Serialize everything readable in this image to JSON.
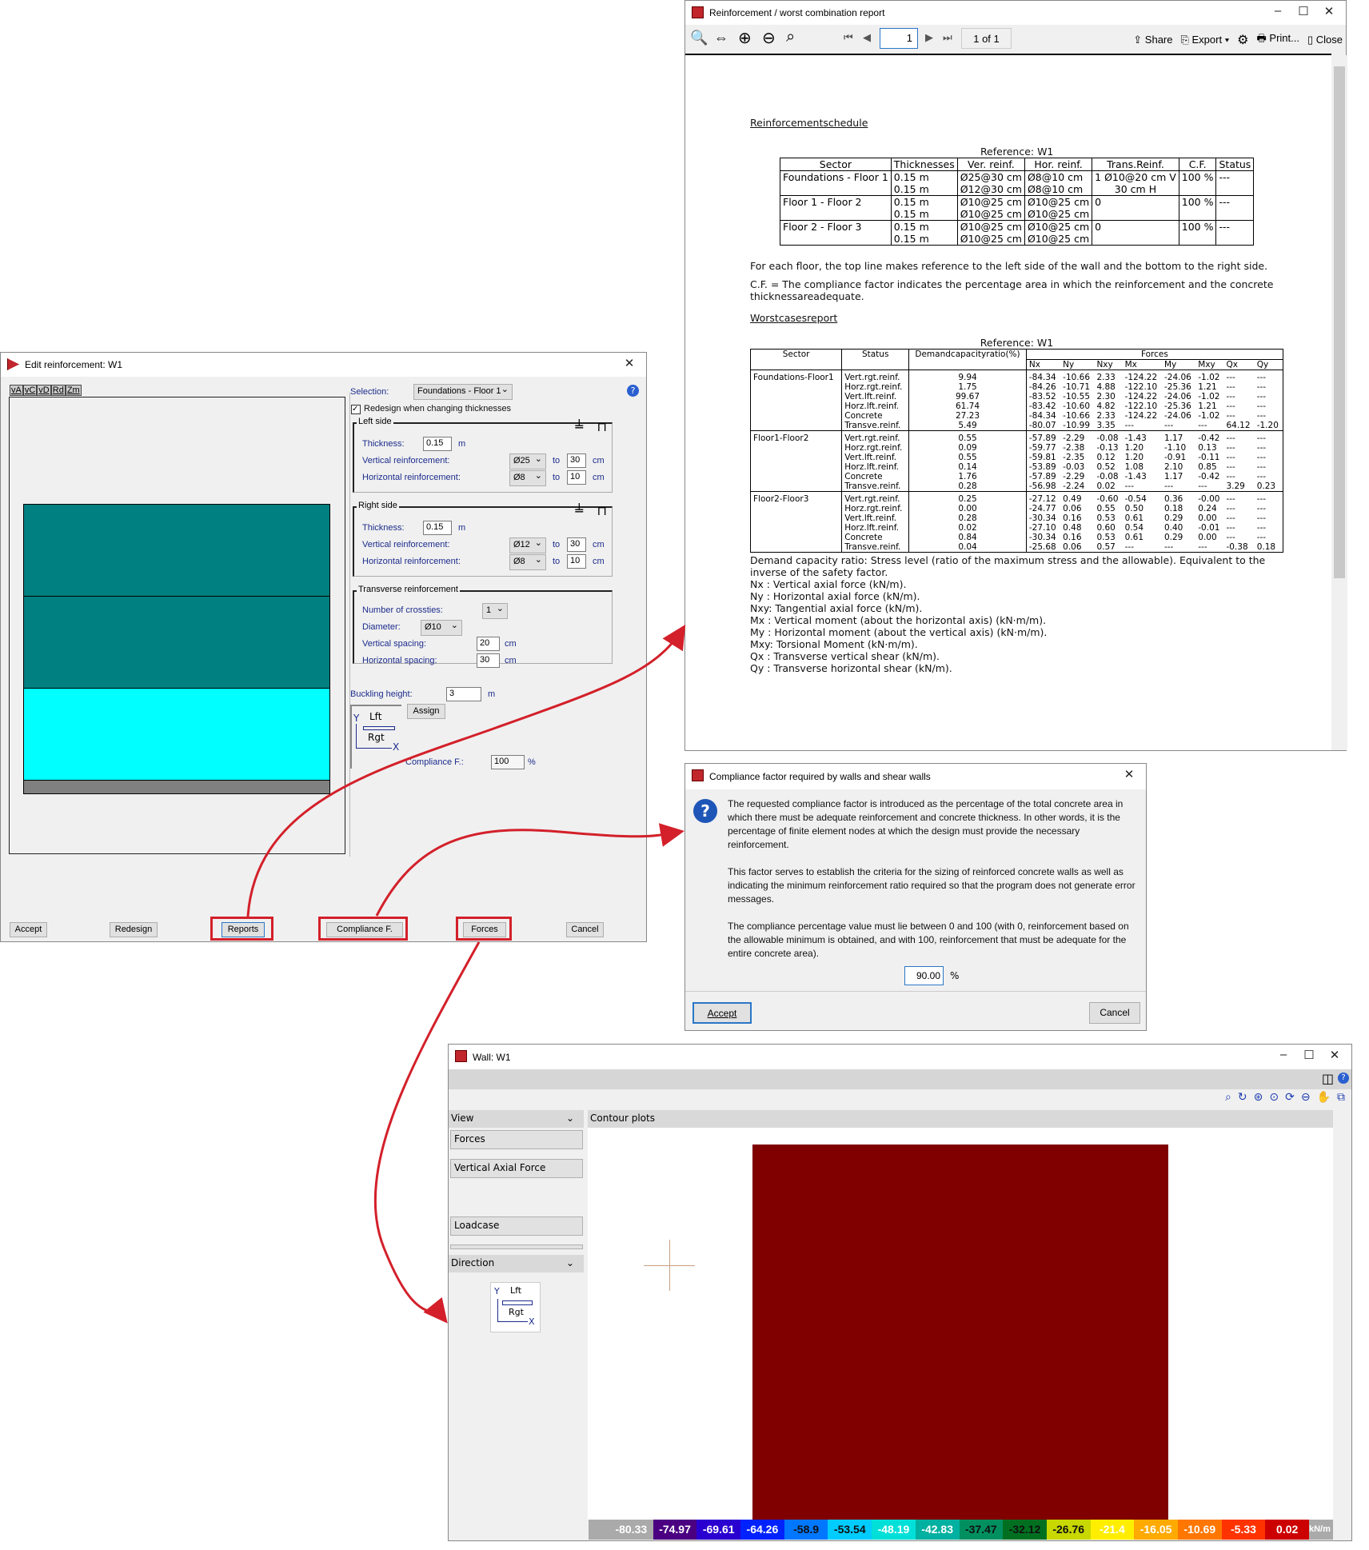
{
  "report": {
    "title": "Reinforcement / worst combination report",
    "page_input": "1",
    "page_of": "1 of 1",
    "toolbar": {
      "share": "Share",
      "export": "Export",
      "print": "Print...",
      "close": "Close"
    },
    "schedule_heading": "Reinforcementschedule",
    "reference1": "Reference: W1",
    "schedule_headers": [
      "Sector",
      "Thicknesses",
      "Ver. reinf.",
      "Hor. reinf.",
      "Trans.Reinf.",
      "C.F.",
      "Status"
    ],
    "schedule_rows": [
      {
        "sector": "Foundations - Floor 1",
        "thick": [
          "0.15 m",
          "0.15 m"
        ],
        "ver": [
          "Ø25@30 cm",
          "Ø12@30 cm"
        ],
        "hor": [
          "Ø8@10 cm",
          "Ø8@10 cm"
        ],
        "trans": [
          "1 Ø10@20 cm V",
          "30 cm H"
        ],
        "cf": "100 %",
        "status": "---"
      },
      {
        "sector": "Floor 1 - Floor 2",
        "thick": [
          "0.15 m",
          "0.15 m"
        ],
        "ver": [
          "Ø10@25 cm",
          "Ø10@25 cm"
        ],
        "hor": [
          "Ø10@25 cm",
          "Ø10@25 cm"
        ],
        "trans": [
          "0",
          ""
        ],
        "cf": "100 %",
        "status": "---"
      },
      {
        "sector": "Floor 2 - Floor 3",
        "thick": [
          "0.15 m",
          "0.15 m"
        ],
        "ver": [
          "Ø10@25 cm",
          "Ø10@25 cm"
        ],
        "hor": [
          "Ø10@25 cm",
          "Ø10@25 cm"
        ],
        "trans": [
          "0",
          ""
        ],
        "cf": "100 %",
        "status": "---"
      }
    ],
    "note1": "For each floor, the top line makes reference to the left side of the wall and the bottom to the right side.",
    "note2": "C.F. = The compliance factor indicates the percentage area in which the reinforcement and the concrete thicknessareadequate.",
    "worst_heading": "Worstcasesreport",
    "reference2": "Reference: W1",
    "worst_headers": {
      "sector": "Sector",
      "status": "Status",
      "ratio": "Demandcapacityratio(%)",
      "forces": "Forces",
      "cols": [
        "Nx",
        "Ny",
        "Nxy",
        "Mx",
        "My",
        "Mxy",
        "Qx",
        "Qy"
      ]
    },
    "worst_groups": [
      {
        "sector": "Foundations-Floor1",
        "rows": [
          [
            "Vert.rgt.reinf.",
            "9.94",
            "-84.34",
            "-10.66",
            "2.33",
            "-124.22",
            "-24.06",
            "-1.02",
            "---",
            "---"
          ],
          [
            "Horz.rgt.reinf.",
            "1.75",
            "-84.26",
            "-10.71",
            "4.88",
            "-122.10",
            "-25.36",
            "1.21",
            "---",
            "---"
          ],
          [
            "Vert.lft.reinf.",
            "99.67",
            "-83.52",
            "-10.55",
            "2.30",
            "-124.22",
            "-24.06",
            "-1.02",
            "---",
            "---"
          ],
          [
            "Horz.lft.reinf.",
            "61.74",
            "-83.42",
            "-10.60",
            "4.82",
            "-122.10",
            "-25.36",
            "1.21",
            "---",
            "---"
          ],
          [
            "Concrete",
            "27.23",
            "-84.34",
            "-10.66",
            "2.33",
            "-124.22",
            "-24.06",
            "-1.02",
            "---",
            "---"
          ],
          [
            "Transve.reinf.",
            "5.49",
            "-80.07",
            "-10.99",
            "3.35",
            "---",
            "---",
            "---",
            "64.12",
            "-1.20"
          ]
        ]
      },
      {
        "sector": "Floor1-Floor2",
        "rows": [
          [
            "Vert.rgt.reinf.",
            "0.55",
            "-57.89",
            "-2.29",
            "-0.08",
            "-1.43",
            "1.17",
            "-0.42",
            "---",
            "---"
          ],
          [
            "Horz.rgt.reinf.",
            "0.09",
            "-59.77",
            "-2.38",
            "-0.13",
            "1.20",
            "-1.10",
            "0.13",
            "---",
            "---"
          ],
          [
            "Vert.lft.reinf.",
            "0.55",
            "-59.81",
            "-2.35",
            "0.12",
            "1.20",
            "-0.91",
            "-0.11",
            "---",
            "---"
          ],
          [
            "Horz.lft.reinf.",
            "0.14",
            "-53.89",
            "-0.03",
            "0.52",
            "1.08",
            "2.10",
            "0.85",
            "---",
            "---"
          ],
          [
            "Concrete",
            "1.76",
            "-57.89",
            "-2.29",
            "-0.08",
            "-1.43",
            "1.17",
            "-0.42",
            "---",
            "---"
          ],
          [
            "Transve.reinf.",
            "0.28",
            "-56.98",
            "-2.24",
            "0.02",
            "---",
            "---",
            "---",
            "3.29",
            "0.23"
          ]
        ]
      },
      {
        "sector": "Floor2-Floor3",
        "rows": [
          [
            "Vert.rgt.reinf.",
            "0.25",
            "-27.12",
            "0.49",
            "-0.60",
            "-0.54",
            "0.36",
            "-0.00",
            "---",
            "---"
          ],
          [
            "Horz.rgt.reinf.",
            "0.00",
            "-24.77",
            "0.06",
            "0.55",
            "0.50",
            "0.18",
            "0.24",
            "---",
            "---"
          ],
          [
            "Vert.lft.reinf.",
            "0.28",
            "-30.34",
            "0.16",
            "0.53",
            "0.61",
            "0.29",
            "0.00",
            "---",
            "---"
          ],
          [
            "Horz.lft.reinf.",
            "0.02",
            "-27.10",
            "0.48",
            "0.60",
            "0.54",
            "0.40",
            "-0.01",
            "---",
            "---"
          ],
          [
            "Concrete",
            "0.84",
            "-30.34",
            "0.16",
            "0.53",
            "0.61",
            "0.29",
            "0.00",
            "---",
            "---"
          ],
          [
            "Transve.reinf.",
            "0.04",
            "-25.68",
            "0.06",
            "0.57",
            "---",
            "---",
            "---",
            "-0.38",
            "0.18"
          ]
        ]
      }
    ],
    "legend_lines": [
      "Demand capacity ratio: Stress level (ratio of the maximum stress and the allowable). Equivalent to the inverse of the safety factor.",
      "Nx : Vertical axial force (kN/m).",
      "Ny : Horizontal axial force (kN/m).",
      "Nxy: Tangential axial force (kN/m).",
      "Mx : Vertical moment (about the horizontal axis) (kN·m/m).",
      "My : Horizontal moment (about the vertical axis) (kN·m/m).",
      "Mxy: Torsional Moment (kN·m/m).",
      "Qx : Transverse vertical shear (kN/m).",
      "Qy : Transverse horizontal shear (kN/m)."
    ]
  },
  "edit": {
    "title": "Edit reinforcement: W1",
    "view_tabs": [
      "vA",
      "vC",
      "vD",
      "Rd",
      "Zm"
    ],
    "selection_label": "Selection:",
    "selection_value": "Foundations - Floor 1",
    "redesign_label": "Redesign when changing thicknesses",
    "redesign_checked": true,
    "left": {
      "title": "Left side",
      "thickness_label": "Thickness:",
      "thickness": "0.15",
      "unit_m": "m",
      "vert_label": "Vertical reinforcement:",
      "vert_dia": "Ø25",
      "vert_sp": "30",
      "hor_label": "Horizontal reinforcement:",
      "hor_dia": "Ø8",
      "hor_sp": "10",
      "to": "to",
      "cm": "cm"
    },
    "right": {
      "title": "Right side",
      "thickness_label": "Thickness:",
      "thickness": "0.15",
      "unit_m": "m",
      "vert_label": "Vertical reinforcement:",
      "vert_dia": "Ø12",
      "vert_sp": "30",
      "hor_label": "Horizontal reinforcement:",
      "hor_dia": "Ø8",
      "hor_sp": "10",
      "to": "to",
      "cm": "cm"
    },
    "trans": {
      "title": "Transverse reinforcement",
      "crossties_label": "Number of crossties:",
      "crossties": "1",
      "dia_label": "Diameter:",
      "dia": "Ø10",
      "vsp_label": "Vertical spacing:",
      "vsp": "20",
      "hsp_label": "Horizontal spacing:",
      "hsp": "30",
      "cm": "cm"
    },
    "buckling_label": "Buckling height:",
    "buckling": "3",
    "buckling_unit": "m",
    "assign": "Assign",
    "axes": {
      "y": "Y",
      "x": "X",
      "lft": "Lft",
      "rgt": "Rgt"
    },
    "compliance_label": "Compliance F.:",
    "compliance": "100",
    "pct": "%",
    "buttons": {
      "accept": "Accept",
      "redesign": "Redesign",
      "reports": "Reports",
      "compliance": "Compliance F.",
      "forces": "Forces",
      "cancel": "Cancel"
    },
    "colors": {
      "teal": "#008080",
      "cyan": "#00ffff",
      "grey": "#808080"
    }
  },
  "compliance": {
    "title": "Compliance factor required by walls and shear walls",
    "para1": "The requested compliance factor is introduced as the percentage of the total concrete area in which there must be adequate reinforcement and concrete thickness. In other words, it is the percentage of finite element nodes at which the design must provide the necessary reinforcement.",
    "para2": "This factor serves to establish the criteria for the sizing of reinforced concrete walls as well as indicating the minimum reinforcement ratio required so that the program does not generate error messages.",
    "para3": "The compliance percentage value must lie between 0 and 100 (with 0, reinforcement based on the allowable minimum is obtained, and with 100, reinforcement that must be adequate for the entire concrete area).",
    "value": "90.00",
    "pct": "%",
    "accept": "Accept",
    "cancel": "Cancel"
  },
  "wall": {
    "title": "Wall: W1",
    "view": "View",
    "forces": "Forces",
    "vertical_axial_force": "Vertical Axial Force",
    "loadcase": "Loadcase",
    "direction": "Direction",
    "contour_plots": "Contour plots",
    "axes": {
      "y": "Y",
      "x": "X",
      "lft": "Lft",
      "rgt": "Rgt"
    },
    "scale_unit": "kN/m",
    "scale_labels": [
      "-80.33",
      "-74.97",
      "-69.61",
      "-64.26",
      "-58.9",
      "-53.54",
      "-48.19",
      "-42.83",
      "-37.47",
      "-32.12",
      "-26.76",
      "-21.4",
      "-16.05",
      "-10.69",
      "-5.33",
      "0.02"
    ],
    "scale_colors": [
      "#4b0082",
      "#2a00d0",
      "#0022ff",
      "#0077ff",
      "#00ccff",
      "#00e0d8",
      "#00b0a0",
      "#009060",
      "#007020",
      "#c8d800",
      "#ffee00",
      "#ffaa00",
      "#ff7700",
      "#ff3300",
      "#cc0000",
      "#800000"
    ],
    "contour_colors_top_to_bottom": [
      "#800000",
      "#cc0000",
      "#ff2200",
      "#ff4400",
      "#ff7700",
      "#ffa000",
      "#ffcc00",
      "#ffee00",
      "#d8e000",
      "#a8d000",
      "#007a20",
      "#009a70",
      "#00c0b0",
      "#00d8d0",
      "#00c8ff",
      "#0090ff",
      "#0050ff"
    ]
  }
}
